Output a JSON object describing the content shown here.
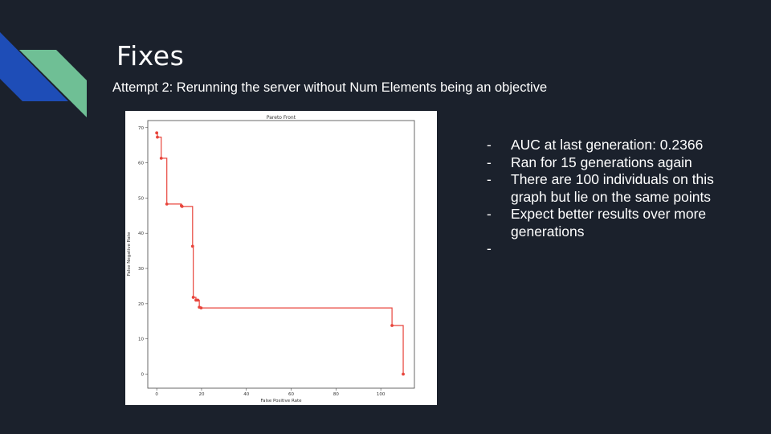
{
  "slide": {
    "title": "Fixes",
    "subtitle": "Attempt 2: Rerunning the server without Num Elements being an objective",
    "colors": {
      "background": "#1b212c",
      "accent_blue": "#1e4db7",
      "accent_green": "#6fbf95",
      "pareto_line": "#e8453c"
    },
    "bullets": [
      "AUC at last generation: 0.2366",
      "Ran for 15 generations again",
      "There are 100 individuals on this graph but lie on the same points",
      "Expect better results over more generations",
      ""
    ]
  },
  "chart_data": {
    "type": "line",
    "title": "Pareto Front",
    "xlabel": "False Positive Rate",
    "ylabel": "False Negative Rate",
    "xlim": [
      -4,
      115
    ],
    "ylim": [
      -4,
      72
    ],
    "xticks": [
      0,
      20,
      40,
      60,
      80,
      100
    ],
    "yticks": [
      0,
      10,
      20,
      30,
      40,
      50,
      60,
      70
    ],
    "grid": false,
    "step": "post",
    "points": [
      {
        "x": 0,
        "y": 68.5
      },
      {
        "x": 0.3,
        "y": 67.3
      },
      {
        "x": 2,
        "y": 61.3
      },
      {
        "x": 4.5,
        "y": 48.3
      },
      {
        "x": 11,
        "y": 47.8
      },
      {
        "x": 11.3,
        "y": 47.6
      },
      {
        "x": 16,
        "y": 36.3
      },
      {
        "x": 16.3,
        "y": 21.8
      },
      {
        "x": 17.5,
        "y": 21
      },
      {
        "x": 18.3,
        "y": 21
      },
      {
        "x": 19,
        "y": 19
      },
      {
        "x": 19.8,
        "y": 18.8
      },
      {
        "x": 105,
        "y": 13.8
      },
      {
        "x": 110,
        "y": 0
      }
    ]
  }
}
